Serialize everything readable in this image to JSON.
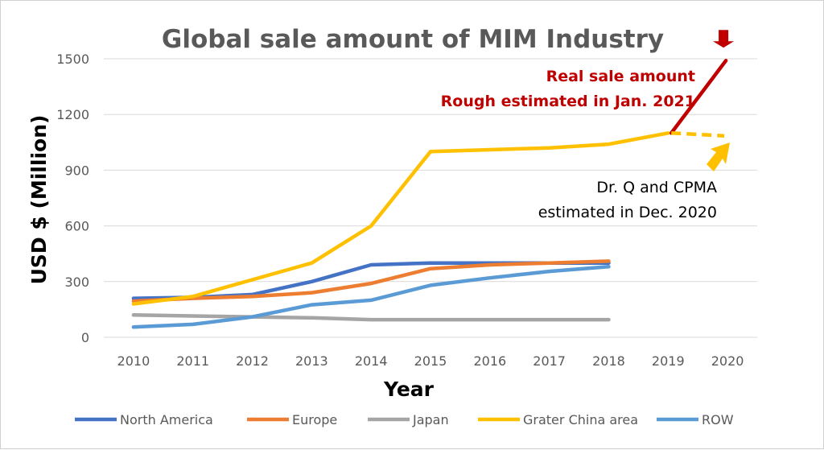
{
  "chart_data": {
    "type": "line",
    "title": "Global sale amount of MIM Industry",
    "xlabel": "Year",
    "ylabel": "USD $ (Million)",
    "ylim": [
      0,
      1500
    ],
    "yticks": [
      0,
      300,
      600,
      900,
      1200,
      1500
    ],
    "grid": "horizontal",
    "legend_position": "bottom",
    "categories": [
      "2010",
      "2011",
      "2012",
      "2013",
      "2014",
      "2015",
      "2016",
      "2017",
      "2018",
      "2019",
      "2020"
    ],
    "series": [
      {
        "name": "North America",
        "color": "#4472c4",
        "values": [
          210,
          215,
          230,
          300,
          390,
          400,
          400,
          400,
          400,
          null,
          null
        ]
      },
      {
        "name": "Europe",
        "color": "#ed7d31",
        "values": [
          195,
          210,
          220,
          240,
          290,
          370,
          390,
          400,
          410,
          null,
          null
        ]
      },
      {
        "name": "Japan",
        "color": "#a5a5a5",
        "values": [
          120,
          115,
          110,
          105,
          95,
          95,
          95,
          95,
          95,
          null,
          null
        ]
      },
      {
        "name": "Grater China area",
        "color": "#ffc000",
        "values": [
          180,
          220,
          310,
          400,
          600,
          1000,
          1010,
          1020,
          1040,
          1100,
          null
        ]
      },
      {
        "name": "ROW",
        "color": "#5b9bd5",
        "values": [
          55,
          70,
          110,
          175,
          200,
          280,
          320,
          355,
          380,
          null,
          null
        ]
      }
    ],
    "projections": [
      {
        "label_lines": [
          "Real sale amount",
          "Rough estimated in Jan. 2021"
        ],
        "color": "#c00000",
        "from": {
          "x": "2019",
          "y": 1100
        },
        "to": {
          "x": "2020",
          "y": 1490
        },
        "style": "solid"
      },
      {
        "label_lines": [
          "Dr. Q and CPMA",
          "estimated in Dec. 2020"
        ],
        "color": "#ffc000",
        "from": {
          "x": "2019",
          "y": 1100
        },
        "to": {
          "x": "2020",
          "y": 1085
        },
        "style": "dashed"
      }
    ]
  }
}
